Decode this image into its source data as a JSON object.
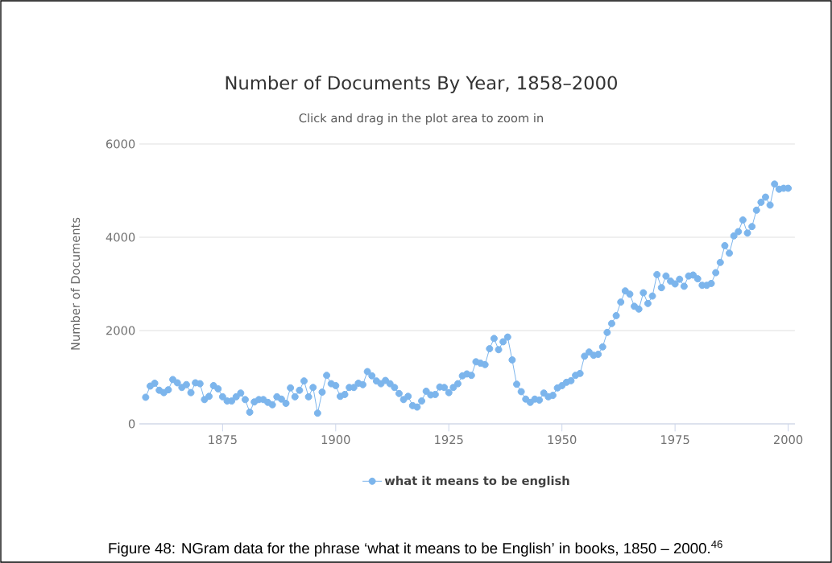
{
  "chart_data": {
    "type": "line",
    "title": "Number of Documents By Year, 1858–2000",
    "subtitle": "Click and drag in the plot area to zoom in",
    "ylabel": "Number of Documents",
    "x": [
      1858,
      1859,
      1860,
      1861,
      1862,
      1863,
      1864,
      1865,
      1866,
      1867,
      1868,
      1869,
      1870,
      1871,
      1872,
      1873,
      1874,
      1875,
      1876,
      1877,
      1878,
      1879,
      1880,
      1881,
      1882,
      1883,
      1884,
      1885,
      1886,
      1887,
      1888,
      1889,
      1890,
      1891,
      1892,
      1893,
      1894,
      1895,
      1896,
      1897,
      1898,
      1899,
      1900,
      1901,
      1902,
      1903,
      1904,
      1905,
      1906,
      1907,
      1908,
      1909,
      1910,
      1911,
      1912,
      1913,
      1914,
      1915,
      1916,
      1917,
      1918,
      1919,
      1920,
      1921,
      1922,
      1923,
      1924,
      1925,
      1926,
      1927,
      1928,
      1929,
      1930,
      1931,
      1932,
      1933,
      1934,
      1935,
      1936,
      1937,
      1938,
      1939,
      1940,
      1941,
      1942,
      1943,
      1944,
      1945,
      1946,
      1947,
      1948,
      1949,
      1950,
      1951,
      1952,
      1953,
      1954,
      1955,
      1956,
      1957,
      1958,
      1959,
      1960,
      1961,
      1962,
      1963,
      1964,
      1965,
      1966,
      1967,
      1968,
      1969,
      1970,
      1971,
      1972,
      1973,
      1974,
      1975,
      1976,
      1977,
      1978,
      1979,
      1980,
      1981,
      1982,
      1983,
      1984,
      1985,
      1986,
      1987,
      1988,
      1989,
      1990,
      1991,
      1992,
      1993,
      1994,
      1995,
      1996,
      1997,
      1998,
      1999,
      2000
    ],
    "series": [
      {
        "name": "what it means to be english",
        "color": "#7cb5ec",
        "values": [
          570,
          810,
          870,
          720,
          670,
          730,
          950,
          880,
          780,
          840,
          670,
          880,
          860,
          520,
          590,
          820,
          750,
          580,
          490,
          490,
          580,
          660,
          520,
          250,
          470,
          520,
          520,
          460,
          410,
          580,
          530,
          440,
          770,
          580,
          720,
          920,
          580,
          780,
          230,
          680,
          1040,
          860,
          820,
          590,
          630,
          780,
          780,
          870,
          840,
          1120,
          1030,
          920,
          860,
          930,
          860,
          780,
          650,
          520,
          590,
          390,
          360,
          490,
          700,
          620,
          630,
          790,
          780,
          670,
          780,
          860,
          1030,
          1070,
          1040,
          1330,
          1300,
          1270,
          1610,
          1830,
          1590,
          1760,
          1860,
          1370,
          850,
          690,
          530,
          460,
          530,
          510,
          660,
          580,
          610,
          770,
          820,
          890,
          925,
          1040,
          1080,
          1450,
          1540,
          1470,
          1490,
          1650,
          1960,
          2150,
          2320,
          2610,
          2850,
          2780,
          2520,
          2460,
          2810,
          2580,
          2740,
          3200,
          2920,
          3170,
          3060,
          3000,
          3100,
          2950,
          3170,
          3190,
          3110,
          2970,
          2970,
          3010,
          3240,
          3460,
          3820,
          3660,
          4030,
          4120,
          4370,
          4090,
          4230,
          4580,
          4750,
          4860,
          4690,
          5140,
          5030,
          5050,
          5050
        ]
      }
    ],
    "xlim": [
      1856.6,
      2001.5
    ],
    "xticks": [
      1875,
      1900,
      1925,
      1950,
      1975,
      2000
    ],
    "ylim": [
      0,
      6000
    ],
    "yticks": [
      0,
      2000,
      4000,
      6000
    ],
    "grid": "y",
    "legend": "bottom",
    "marker": "circle",
    "line_style": "solid",
    "annotations": [
      "Figure 48: NGram data for the phrase ‘what it means to be English’ in books, 1850 – 2000.$^{46}$"
    ]
  }
}
